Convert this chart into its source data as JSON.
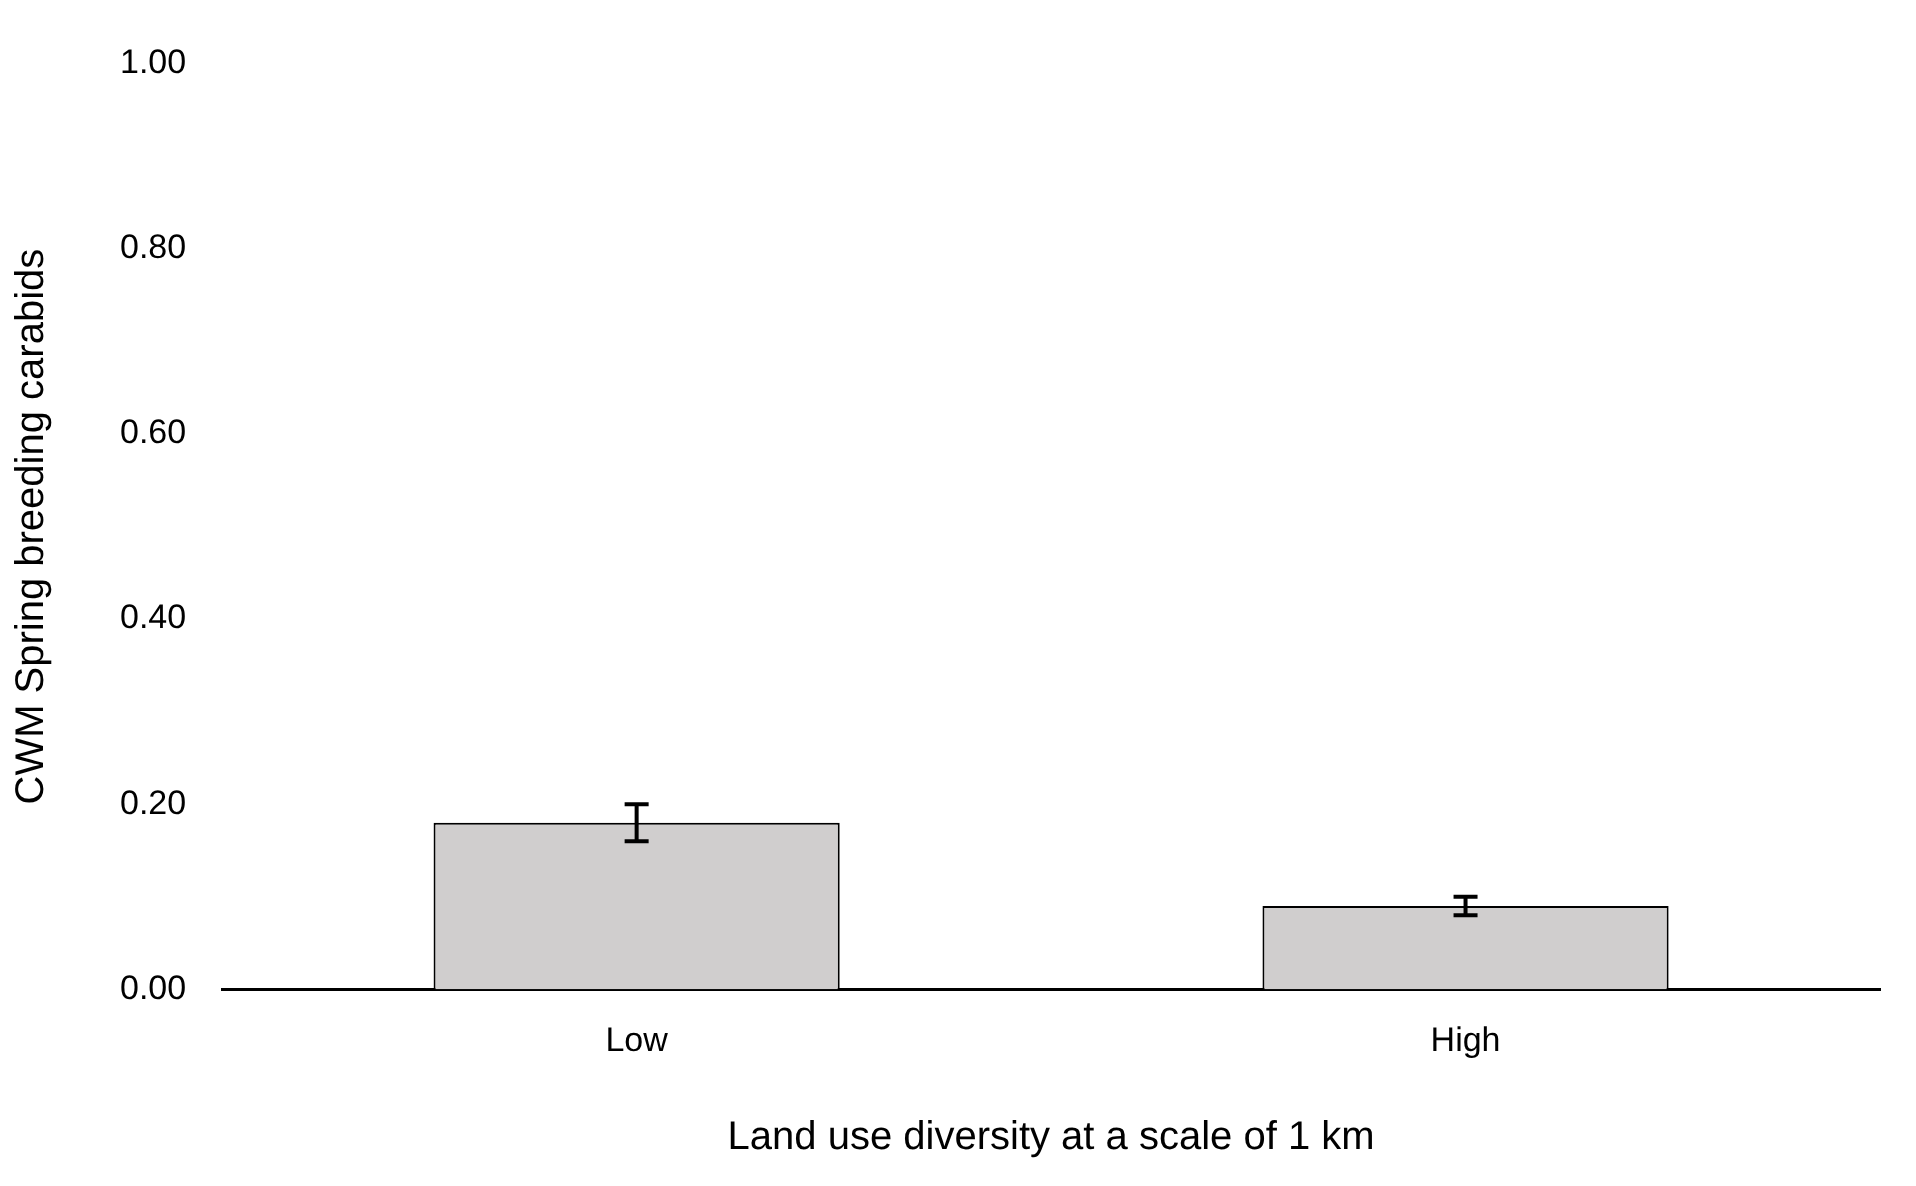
{
  "chart_data": {
    "type": "bar",
    "xlabel": "Land use diversity at a scale of 1 km",
    "ylabel": "CWM Spring breeding carabids",
    "categories": [
      "Low",
      "High"
    ],
    "values": [
      0.18,
      0.09
    ],
    "errors": [
      0.02,
      0.01
    ],
    "color": "#d0cece",
    "ylim": [
      0,
      1
    ],
    "yticks": [
      {
        "value": 0,
        "label": "0.00"
      },
      {
        "value": 0.2,
        "label": "0.20"
      },
      {
        "value": 0.4,
        "label": "0.40"
      },
      {
        "value": 0.6,
        "label": "0.60"
      },
      {
        "value": 0.8,
        "label": "0.80"
      },
      {
        "value": 1,
        "label": "1.00"
      }
    ],
    "grid": false,
    "legend": false
  }
}
